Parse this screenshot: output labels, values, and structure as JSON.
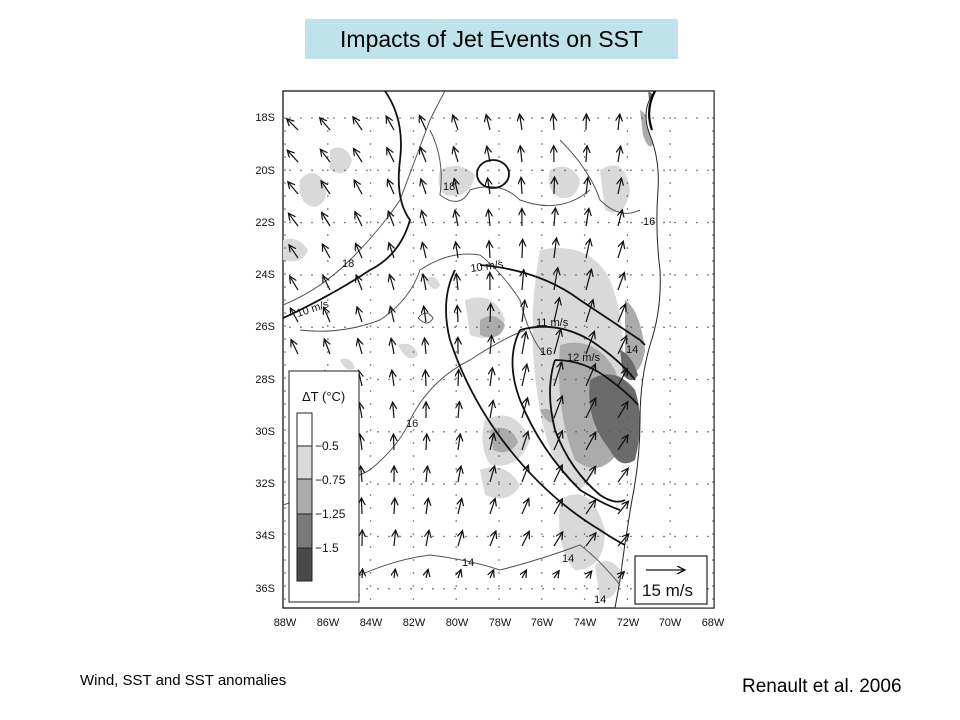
{
  "title": "Impacts of Jet Events on SST",
  "caption_left": "Wind, SST and SST anomalies",
  "caption_right": "Renault et al. 2006",
  "map": {
    "lat_labels": [
      "18S",
      "20S",
      "22S",
      "24S",
      "26S",
      "28S",
      "30S",
      "32S",
      "34S",
      "36S"
    ],
    "lon_labels": [
      "88W",
      "86W",
      "84W",
      "82W",
      "80W",
      "78W",
      "76W",
      "74W",
      "72W",
      "70W",
      "68W"
    ],
    "wind_contours": [
      "10 m/s",
      "10 m/s",
      "11 m/s",
      "12 m/s"
    ],
    "sst_contours": [
      "18",
      "18",
      "16",
      "16",
      "16",
      "14",
      "14",
      "14",
      "14"
    ],
    "legend": {
      "title": "ΔT (°C)",
      "levels": [
        {
          "label": "−0.5",
          "color": "#ffffff"
        },
        {
          "label": "−0.75",
          "color": "#d9d9d9"
        },
        {
          "label": "−1.25",
          "color": "#ababab"
        },
        {
          "label": "−1.5",
          "color": "#7a7a7a"
        },
        {
          "label": "",
          "color": "#4a4a4a"
        }
      ]
    },
    "reference_vector": "15 m/s",
    "colors": {
      "land": "#ffffff",
      "anomaly_light": "#d9d9d9",
      "anomaly_mid": "#ababab",
      "anomaly_dark": "#6b6b6b",
      "title_bg": "#bfe3ea"
    }
  }
}
